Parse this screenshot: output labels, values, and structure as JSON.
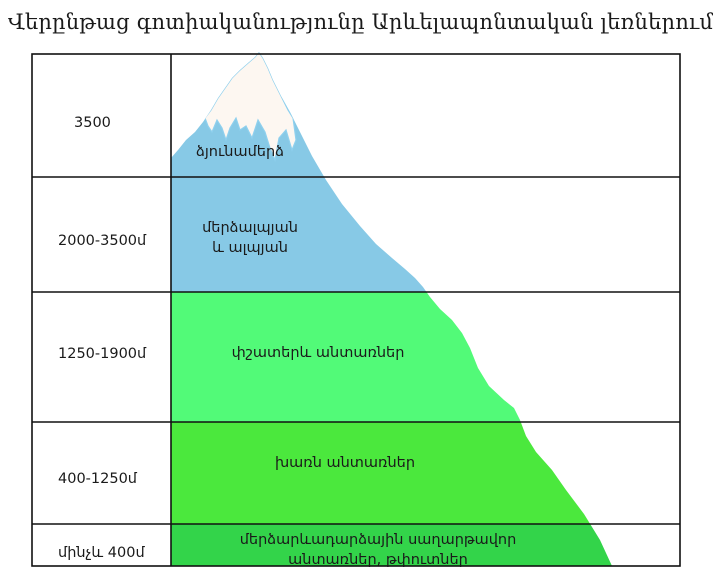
{
  "title": "Վերընթաց գոտիականությունը Արևելապոնտական լեռներում",
  "rows": [
    {
      "altitude": "3500",
      "zone_line1": "ձյունամերձ",
      "zone_line2": ""
    },
    {
      "altitude": "2000-3500մ",
      "zone_line1": "մերձալպյան",
      "zone_line2": "և ալպյան"
    },
    {
      "altitude": "1250-1900մ",
      "zone_line1": "փշատերև անտառներ",
      "zone_line2": ""
    },
    {
      "altitude": "400-1250մ",
      "zone_line1": "խառն անտառներ",
      "zone_line2": ""
    },
    {
      "altitude": "մինչև 400մ",
      "zone_line1": "մերձարևադարձային սաղարթավոր",
      "zone_line2": "անտառներ, թփուտներ"
    }
  ],
  "colors": {
    "snow": "#fdf7f1",
    "alpine": "#87c9e6",
    "conifer": "#52fa78",
    "mixed": "#4be83d",
    "subtropical": "#33d44a",
    "grid": "#111111"
  }
}
